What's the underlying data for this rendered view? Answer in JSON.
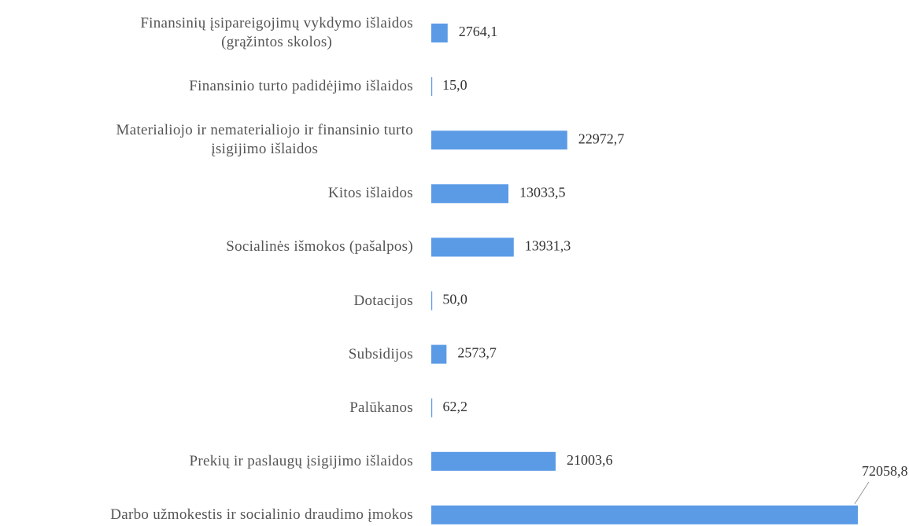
{
  "chart_data": {
    "type": "hbar",
    "categories": [
      "Finansinių įsipareigojimų vykdymo išlaidos\n(grąžintos skolos)",
      "Finansinio turto padidėjimo išlaidos",
      "Materialiojo ir nematerialiojo ir finansinio turto\nįsigijimo išlaidos",
      "Kitos išlaidos",
      "Socialinės išmokos (pašalpos)",
      "Dotacijos",
      "Subsidijos",
      "Palūkanos",
      "Prekių ir paslaugų įsigijimo išlaidos",
      "Darbo užmokestis ir socialinio draudimo įmokos"
    ],
    "values": [
      2764.1,
      15.0,
      22972.7,
      13033.5,
      13931.3,
      50.0,
      2573.7,
      62.2,
      21003.6,
      72058.8
    ],
    "value_labels": [
      "2764,1",
      "15,0",
      "22972,7",
      "13033,5",
      "13931,3",
      "50,0",
      "2573,7",
      "62,2",
      "21003,6",
      "72058,8"
    ],
    "color": "#5b9be6"
  }
}
